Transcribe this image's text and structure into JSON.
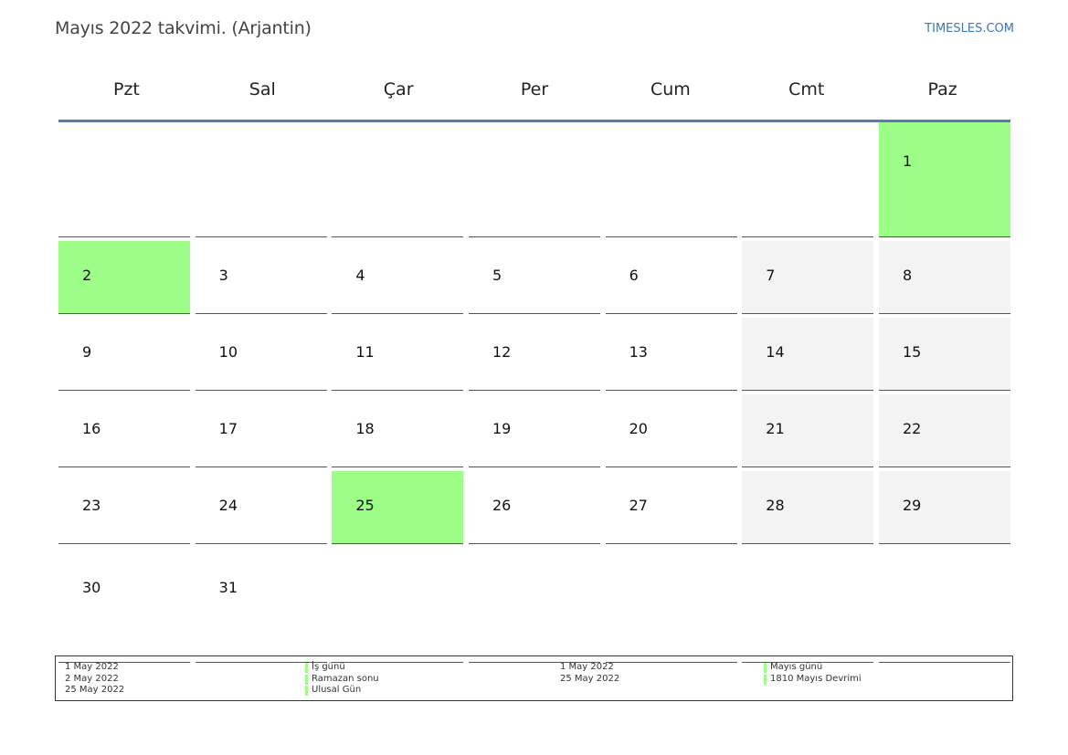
{
  "header": {
    "title": "Mayıs 2022 takvimi. (Arjantin)",
    "site": "TIMESLES.COM"
  },
  "colors": {
    "holiday": "#9cfd87",
    "weekend": "#f3f3f3",
    "header_rule": "#5b7bab",
    "site_link": "#3a78b8"
  },
  "weekdays": [
    "Pzt",
    "Sal",
    "Çar",
    "Per",
    "Cum",
    "Cmt",
    "Paz"
  ],
  "weeks": [
    [
      {
        "day": "",
        "type": "empty"
      },
      {
        "day": "",
        "type": "empty"
      },
      {
        "day": "",
        "type": "empty"
      },
      {
        "day": "",
        "type": "empty"
      },
      {
        "day": "",
        "type": "empty"
      },
      {
        "day": "",
        "type": "empty"
      },
      {
        "day": "1",
        "type": "holiday"
      }
    ],
    [
      {
        "day": "2",
        "type": "holiday"
      },
      {
        "day": "3",
        "type": "normal"
      },
      {
        "day": "4",
        "type": "normal"
      },
      {
        "day": "5",
        "type": "normal"
      },
      {
        "day": "6",
        "type": "normal"
      },
      {
        "day": "7",
        "type": "weekend"
      },
      {
        "day": "8",
        "type": "weekend"
      }
    ],
    [
      {
        "day": "9",
        "type": "normal"
      },
      {
        "day": "10",
        "type": "normal"
      },
      {
        "day": "11",
        "type": "normal"
      },
      {
        "day": "12",
        "type": "normal"
      },
      {
        "day": "13",
        "type": "normal"
      },
      {
        "day": "14",
        "type": "weekend"
      },
      {
        "day": "15",
        "type": "weekend"
      }
    ],
    [
      {
        "day": "16",
        "type": "normal"
      },
      {
        "day": "17",
        "type": "normal"
      },
      {
        "day": "18",
        "type": "normal"
      },
      {
        "day": "19",
        "type": "normal"
      },
      {
        "day": "20",
        "type": "normal"
      },
      {
        "day": "21",
        "type": "weekend"
      },
      {
        "day": "22",
        "type": "weekend"
      }
    ],
    [
      {
        "day": "23",
        "type": "normal"
      },
      {
        "day": "24",
        "type": "normal"
      },
      {
        "day": "25",
        "type": "holiday"
      },
      {
        "day": "26",
        "type": "normal"
      },
      {
        "day": "27",
        "type": "normal"
      },
      {
        "day": "28",
        "type": "weekend"
      },
      {
        "day": "29",
        "type": "weekend"
      }
    ],
    [
      {
        "day": "30",
        "type": "normal"
      },
      {
        "day": "31",
        "type": "normal"
      },
      {
        "day": "",
        "type": "empty"
      },
      {
        "day": "",
        "type": "empty"
      },
      {
        "day": "",
        "type": "empty"
      },
      {
        "day": "",
        "type": "empty"
      },
      {
        "day": "",
        "type": "empty"
      }
    ]
  ],
  "legend": {
    "left": {
      "dates": [
        "1 May 2022",
        "2 May 2022",
        "25 May 2022"
      ],
      "names": [
        "İş günü",
        "Ramazan sonu",
        "Ulusal Gün"
      ]
    },
    "right": {
      "dates": [
        "1 May 2022",
        "25 May 2022"
      ],
      "names": [
        "Mayıs günü",
        "1810 Mayıs Devrimi"
      ]
    }
  }
}
